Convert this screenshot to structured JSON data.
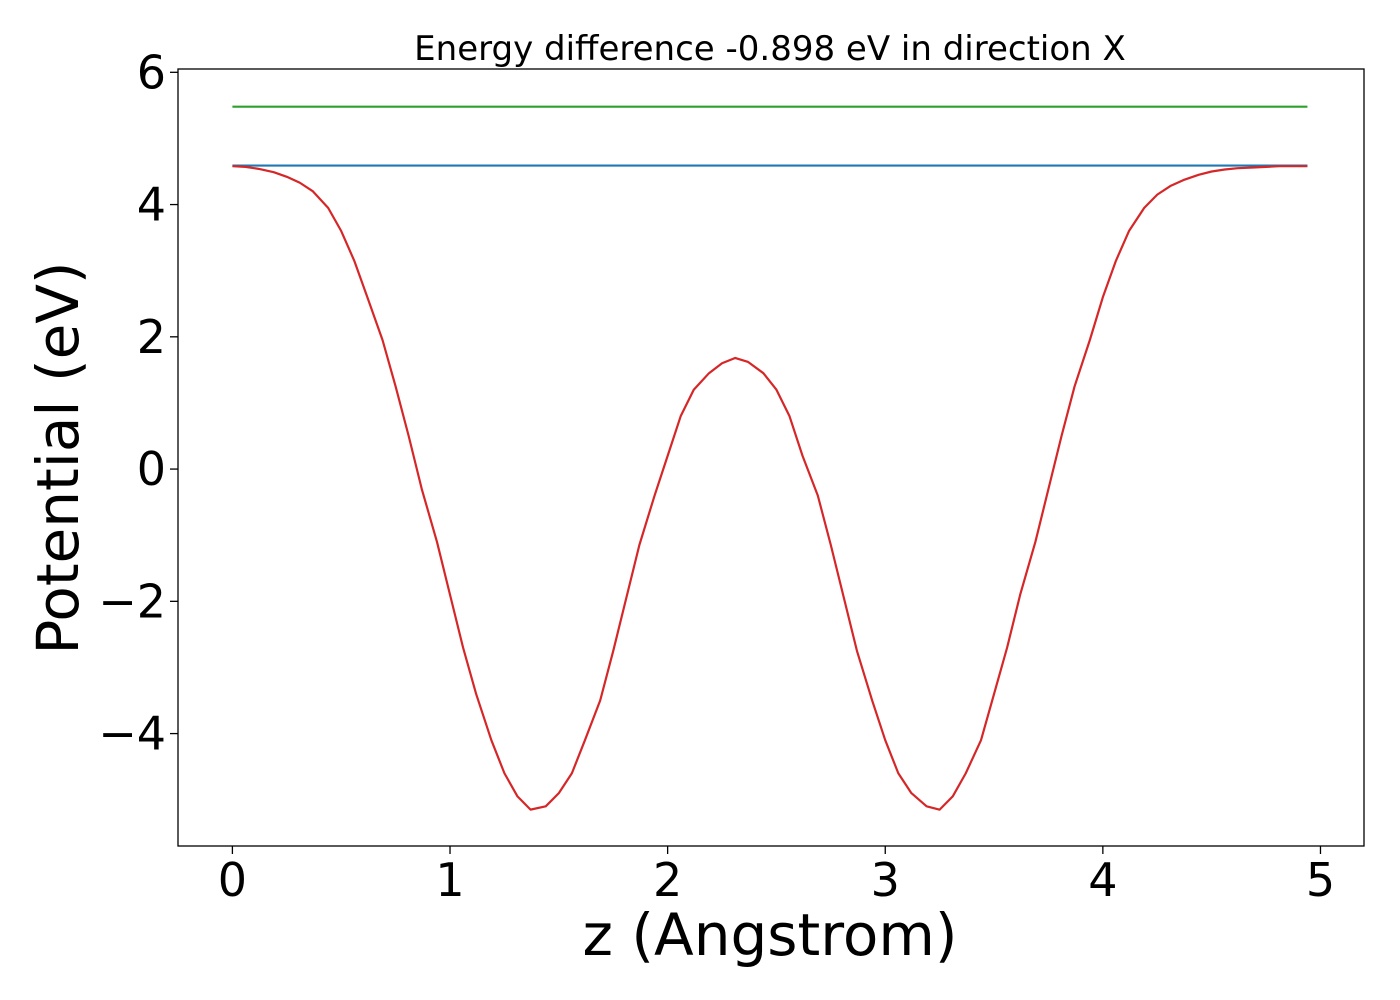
{
  "chart_data": {
    "type": "line",
    "title": "Energy difference -0.898 eV in direction X",
    "xlabel": "z (Angstrom)",
    "ylabel": "Potential (eV)",
    "xlim": [
      -0.25,
      5.2
    ],
    "ylim": [
      -5.7,
      6.05
    ],
    "x_ticks": [
      0,
      1,
      2,
      3,
      4,
      5
    ],
    "x_tick_labels": [
      "0",
      "1",
      "2",
      "3",
      "4",
      "5"
    ],
    "y_ticks": [
      6,
      4,
      2,
      0,
      -2,
      -4
    ],
    "y_tick_labels": [
      "6",
      "4",
      "2",
      "0",
      "−2",
      "−4"
    ],
    "grid": false,
    "series": [
      {
        "color": "#2ca02c",
        "x": [
          0,
          4.94
        ],
        "y": [
          5.48,
          5.48
        ]
      },
      {
        "color": "#1f77b4",
        "x": [
          0,
          4.94
        ],
        "y": [
          4.59,
          4.59
        ]
      },
      {
        "color": "#d62728",
        "x": [
          0,
          0.06,
          0.12,
          0.19,
          0.25,
          0.31,
          0.37,
          0.44,
          0.5,
          0.56,
          0.62,
          0.69,
          0.75,
          0.81,
          0.87,
          0.94,
          1.0,
          1.06,
          1.12,
          1.19,
          1.25,
          1.31,
          1.37,
          1.44,
          1.5,
          1.56,
          1.62,
          1.69,
          1.75,
          1.81,
          1.87,
          1.94,
          2.0,
          2.06,
          2.12,
          2.19,
          2.25,
          2.31,
          2.37,
          2.44,
          2.5,
          2.56,
          2.62,
          2.69,
          2.75,
          2.81,
          2.87,
          2.94,
          3.0,
          3.06,
          3.12,
          3.19,
          3.25,
          3.31,
          3.37,
          3.44,
          3.5,
          3.56,
          3.62,
          3.69,
          3.75,
          3.81,
          3.87,
          3.94,
          4.0,
          4.06,
          4.12,
          4.19,
          4.25,
          4.31,
          4.37,
          4.44,
          4.5,
          4.56,
          4.62,
          4.69,
          4.75,
          4.81,
          4.87,
          4.94
        ],
        "y": [
          4.58,
          4.57,
          4.54,
          4.49,
          4.42,
          4.33,
          4.2,
          3.95,
          3.6,
          3.15,
          2.6,
          1.95,
          1.25,
          0.5,
          -0.3,
          -1.1,
          -1.9,
          -2.7,
          -3.4,
          -4.1,
          -4.6,
          -4.95,
          -5.15,
          -5.1,
          -4.9,
          -4.6,
          -4.1,
          -3.5,
          -2.75,
          -1.95,
          -1.15,
          -0.4,
          0.2,
          0.8,
          1.2,
          1.45,
          1.6,
          1.68,
          1.62,
          1.45,
          1.2,
          0.8,
          0.2,
          -0.4,
          -1.15,
          -1.95,
          -2.75,
          -3.5,
          -4.1,
          -4.6,
          -4.9,
          -5.1,
          -5.15,
          -4.95,
          -4.6,
          -4.1,
          -3.4,
          -2.7,
          -1.9,
          -1.1,
          -0.3,
          0.5,
          1.25,
          1.95,
          2.6,
          3.15,
          3.6,
          3.95,
          4.15,
          4.28,
          4.37,
          4.45,
          4.5,
          4.53,
          4.55,
          4.56,
          4.57,
          4.58,
          4.58,
          4.58
        ]
      }
    ]
  }
}
